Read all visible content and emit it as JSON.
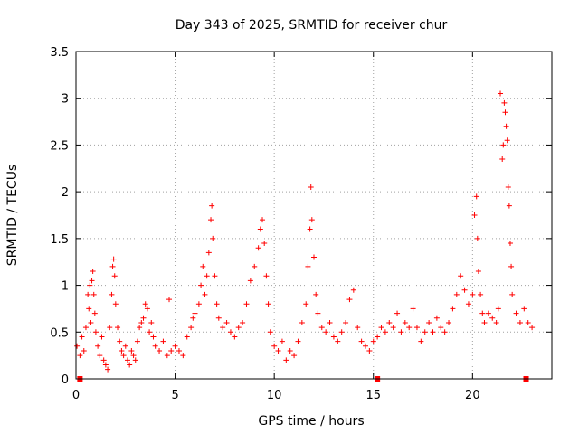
{
  "chart_data": {
    "type": "scatter",
    "title": "Day 343 of 2025, SRMTID for receiver chur",
    "xlabel": "GPS time / hours",
    "ylabel": "SRMTID / TECUs",
    "xlim": [
      0,
      24
    ],
    "ylim": [
      0,
      3.5
    ],
    "xticks": [
      0,
      5,
      10,
      15,
      20
    ],
    "xtick_labels": [
      "0",
      "5",
      "10",
      "15",
      "20"
    ],
    "yticks": [
      0,
      0.5,
      1,
      1.5,
      2,
      2.5,
      3,
      3.5
    ],
    "ytick_labels": [
      "0",
      "0.5",
      "1",
      "1.5",
      "2",
      "2.5",
      "3",
      "3.5"
    ],
    "grid": true,
    "marker": "+",
    "color": "#ff0000",
    "gap_markers_x": [
      0.2,
      15.2,
      22.7
    ],
    "series": [
      {
        "name": "SRMTID",
        "points": [
          [
            0.05,
            0.35
          ],
          [
            0.2,
            0.25
          ],
          [
            0.3,
            0.45
          ],
          [
            0.4,
            0.3
          ],
          [
            0.5,
            0.55
          ],
          [
            0.6,
            0.9
          ],
          [
            0.65,
            0.75
          ],
          [
            0.7,
            1.0
          ],
          [
            0.75,
            0.6
          ],
          [
            0.8,
            1.05
          ],
          [
            0.85,
            1.15
          ],
          [
            0.9,
            0.9
          ],
          [
            0.95,
            0.7
          ],
          [
            1.0,
            0.5
          ],
          [
            1.1,
            0.35
          ],
          [
            1.2,
            0.25
          ],
          [
            1.3,
            0.45
          ],
          [
            1.4,
            0.2
          ],
          [
            1.5,
            0.15
          ],
          [
            1.6,
            0.1
          ],
          [
            1.7,
            0.55
          ],
          [
            1.8,
            0.9
          ],
          [
            1.85,
            1.2
          ],
          [
            1.9,
            1.28
          ],
          [
            1.95,
            1.1
          ],
          [
            2.0,
            0.8
          ],
          [
            2.1,
            0.55
          ],
          [
            2.2,
            0.4
          ],
          [
            2.3,
            0.3
          ],
          [
            2.4,
            0.25
          ],
          [
            2.5,
            0.35
          ],
          [
            2.6,
            0.2
          ],
          [
            2.7,
            0.15
          ],
          [
            2.8,
            0.3
          ],
          [
            2.9,
            0.25
          ],
          [
            3.0,
            0.2
          ],
          [
            3.1,
            0.4
          ],
          [
            3.2,
            0.55
          ],
          [
            3.3,
            0.6
          ],
          [
            3.4,
            0.65
          ],
          [
            3.5,
            0.8
          ],
          [
            3.6,
            0.75
          ],
          [
            3.7,
            0.5
          ],
          [
            3.8,
            0.6
          ],
          [
            3.9,
            0.45
          ],
          [
            4.0,
            0.35
          ],
          [
            4.2,
            0.3
          ],
          [
            4.4,
            0.4
          ],
          [
            4.6,
            0.25
          ],
          [
            4.7,
            0.85
          ],
          [
            4.8,
            0.3
          ],
          [
            5.0,
            0.35
          ],
          [
            5.2,
            0.3
          ],
          [
            5.4,
            0.25
          ],
          [
            5.6,
            0.45
          ],
          [
            5.8,
            0.55
          ],
          [
            5.9,
            0.65
          ],
          [
            6.0,
            0.7
          ],
          [
            6.2,
            0.8
          ],
          [
            6.3,
            1.0
          ],
          [
            6.4,
            1.2
          ],
          [
            6.5,
            0.9
          ],
          [
            6.6,
            1.1
          ],
          [
            6.7,
            1.35
          ],
          [
            6.8,
            1.7
          ],
          [
            6.85,
            1.85
          ],
          [
            6.9,
            1.5
          ],
          [
            7.0,
            1.1
          ],
          [
            7.1,
            0.8
          ],
          [
            7.2,
            0.65
          ],
          [
            7.4,
            0.55
          ],
          [
            7.6,
            0.6
          ],
          [
            7.8,
            0.5
          ],
          [
            8.0,
            0.45
          ],
          [
            8.2,
            0.55
          ],
          [
            8.4,
            0.6
          ],
          [
            8.6,
            0.8
          ],
          [
            8.8,
            1.05
          ],
          [
            9.0,
            1.2
          ],
          [
            9.2,
            1.4
          ],
          [
            9.3,
            1.6
          ],
          [
            9.4,
            1.7
          ],
          [
            9.5,
            1.45
          ],
          [
            9.6,
            1.1
          ],
          [
            9.7,
            0.8
          ],
          [
            9.8,
            0.5
          ],
          [
            10.0,
            0.35
          ],
          [
            10.2,
            0.3
          ],
          [
            10.4,
            0.4
          ],
          [
            10.6,
            0.2
          ],
          [
            10.8,
            0.3
          ],
          [
            11.0,
            0.25
          ],
          [
            11.2,
            0.4
          ],
          [
            11.4,
            0.6
          ],
          [
            11.6,
            0.8
          ],
          [
            11.7,
            1.2
          ],
          [
            11.8,
            1.6
          ],
          [
            11.85,
            2.05
          ],
          [
            11.9,
            1.7
          ],
          [
            12.0,
            1.3
          ],
          [
            12.1,
            0.9
          ],
          [
            12.2,
            0.7
          ],
          [
            12.4,
            0.55
          ],
          [
            12.6,
            0.5
          ],
          [
            12.8,
            0.6
          ],
          [
            13.0,
            0.45
          ],
          [
            13.2,
            0.4
          ],
          [
            13.4,
            0.5
          ],
          [
            13.6,
            0.6
          ],
          [
            13.8,
            0.85
          ],
          [
            14.0,
            0.95
          ],
          [
            14.2,
            0.55
          ],
          [
            14.4,
            0.4
          ],
          [
            14.6,
            0.35
          ],
          [
            14.8,
            0.3
          ],
          [
            15.0,
            0.4
          ],
          [
            15.2,
            0.45
          ],
          [
            15.4,
            0.55
          ],
          [
            15.6,
            0.5
          ],
          [
            15.8,
            0.6
          ],
          [
            16.0,
            0.55
          ],
          [
            16.2,
            0.7
          ],
          [
            16.4,
            0.5
          ],
          [
            16.6,
            0.6
          ],
          [
            16.8,
            0.55
          ],
          [
            17.0,
            0.75
          ],
          [
            17.2,
            0.55
          ],
          [
            17.4,
            0.4
          ],
          [
            17.6,
            0.5
          ],
          [
            17.8,
            0.6
          ],
          [
            18.0,
            0.5
          ],
          [
            18.2,
            0.65
          ],
          [
            18.4,
            0.55
          ],
          [
            18.6,
            0.5
          ],
          [
            18.8,
            0.6
          ],
          [
            19.0,
            0.75
          ],
          [
            19.2,
            0.9
          ],
          [
            19.4,
            1.1
          ],
          [
            19.6,
            0.95
          ],
          [
            19.8,
            0.8
          ],
          [
            20.0,
            0.9
          ],
          [
            20.1,
            1.75
          ],
          [
            20.2,
            1.95
          ],
          [
            20.25,
            1.5
          ],
          [
            20.3,
            1.15
          ],
          [
            20.4,
            0.9
          ],
          [
            20.5,
            0.7
          ],
          [
            20.6,
            0.6
          ],
          [
            20.8,
            0.7
          ],
          [
            21.0,
            0.65
          ],
          [
            21.2,
            0.6
          ],
          [
            21.3,
            0.75
          ],
          [
            21.4,
            3.05
          ],
          [
            21.5,
            2.35
          ],
          [
            21.55,
            2.5
          ],
          [
            21.6,
            2.95
          ],
          [
            21.65,
            2.85
          ],
          [
            21.7,
            2.7
          ],
          [
            21.75,
            2.55
          ],
          [
            21.8,
            2.05
          ],
          [
            21.85,
            1.85
          ],
          [
            21.9,
            1.45
          ],
          [
            21.95,
            1.2
          ],
          [
            22.0,
            0.9
          ],
          [
            22.2,
            0.7
          ],
          [
            22.4,
            0.6
          ],
          [
            22.6,
            0.75
          ],
          [
            22.8,
            0.6
          ],
          [
            23.0,
            0.55
          ]
        ]
      }
    ]
  }
}
